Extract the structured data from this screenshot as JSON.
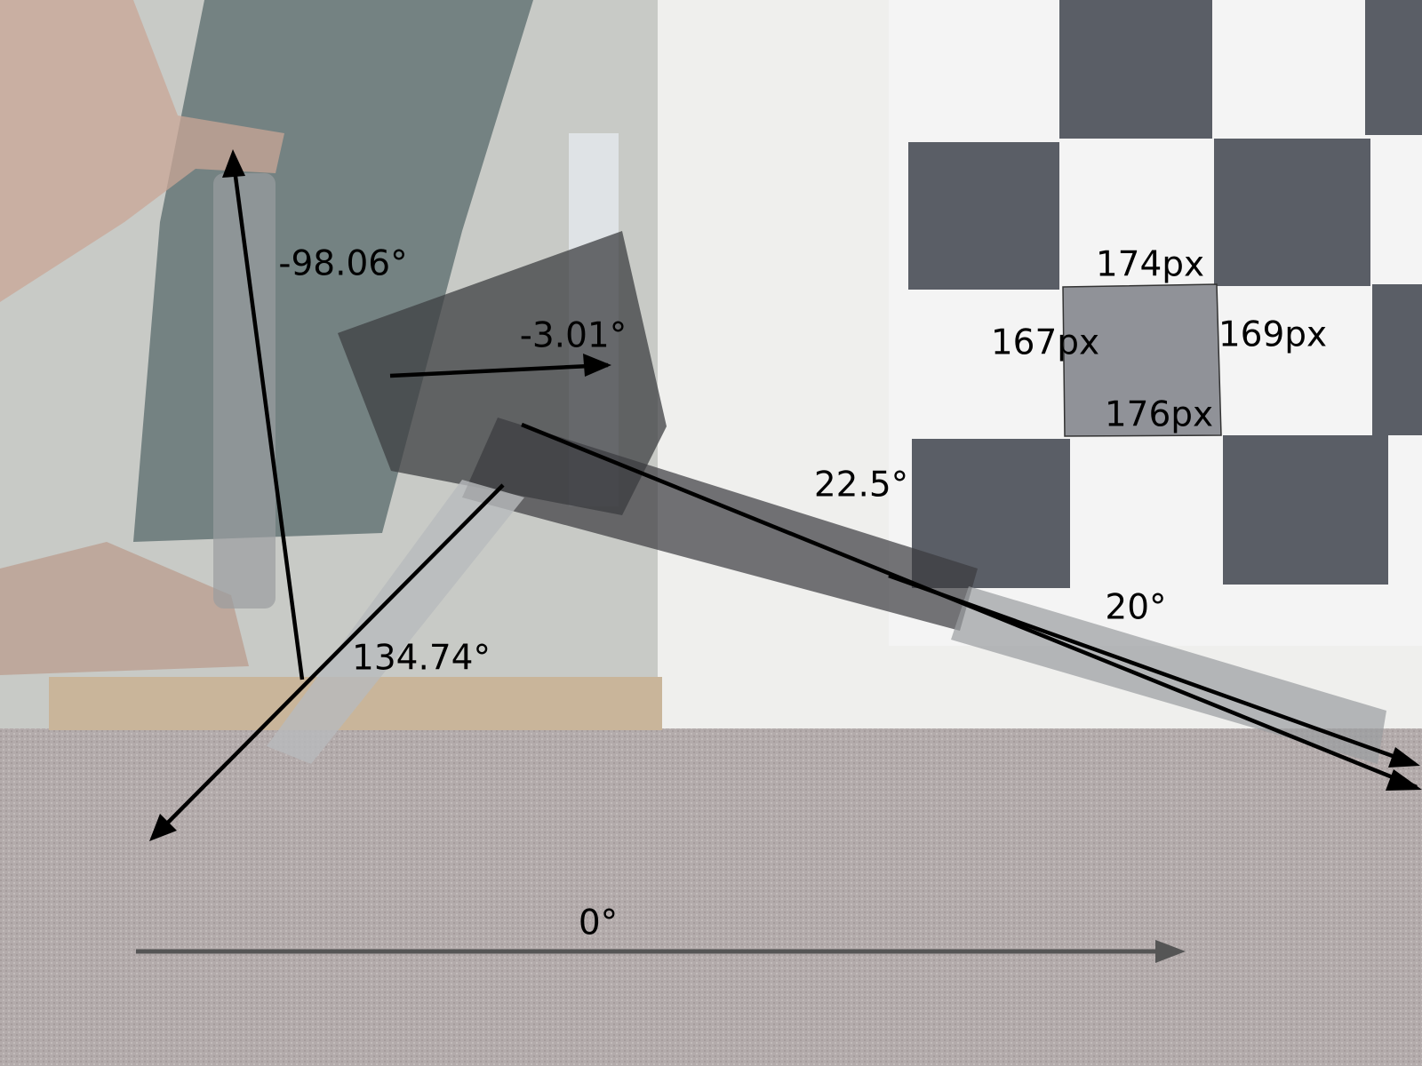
{
  "angle_labels": [
    "-98.06°",
    "-3.01°",
    "22.5°",
    "20°",
    "134.74°",
    "0°"
  ],
  "square_side_labels": [
    "174px",
    "167px",
    "169px",
    "176px"
  ]
}
